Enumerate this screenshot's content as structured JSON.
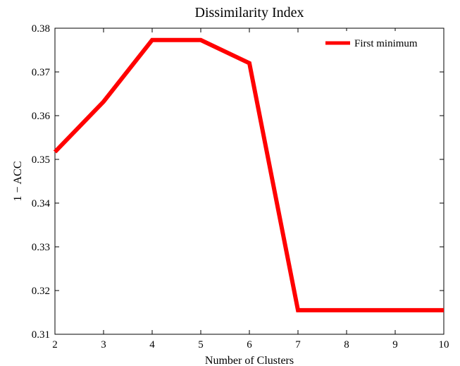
{
  "chart_data": {
    "type": "line",
    "title": "Dissimilarity Index",
    "xlabel": "Number of Clusters",
    "ylabel": "1 − ACC",
    "xlim": [
      2,
      10
    ],
    "ylim": [
      0.31,
      0.38
    ],
    "xticks": [
      2,
      3,
      4,
      5,
      6,
      7,
      8,
      9,
      10
    ],
    "yticks": [
      "0.31",
      "0.32",
      "0.33",
      "0.34",
      "0.35",
      "0.36",
      "0.37",
      "0.38"
    ],
    "grid": false,
    "legend_position": "top-right",
    "series": [
      {
        "name": "First minimum",
        "color": "#ff0000",
        "x": [
          2,
          3,
          4,
          5,
          6,
          7,
          8,
          9,
          10
        ],
        "y": [
          0.3517,
          0.3632,
          0.3773,
          0.3773,
          0.372,
          0.3155,
          0.3155,
          0.3155,
          0.3155
        ]
      }
    ]
  }
}
